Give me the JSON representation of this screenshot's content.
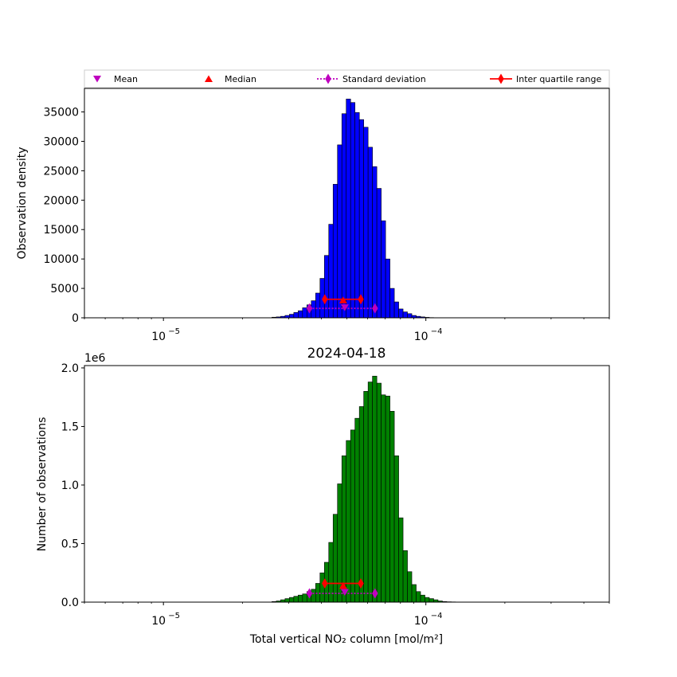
{
  "legend": {
    "placement": "top",
    "items": [
      {
        "label": "Mean",
        "color": "#bf00bf",
        "marker": "triangle-down",
        "line": "none"
      },
      {
        "label": "Median",
        "color": "#ff0000",
        "marker": "triangle-up",
        "line": "none"
      },
      {
        "label": "Standard deviation",
        "color": "#bf00bf",
        "marker": "diamond",
        "line": "dotted"
      },
      {
        "label": "Inter quartile range",
        "color": "#ff0000",
        "marker": "diamond",
        "line": "solid"
      }
    ]
  },
  "chart_data": [
    {
      "type": "bar",
      "title": "",
      "xlabel": "",
      "ylabel": "Observation density",
      "x_scale": "log",
      "xlim": [
        5e-06,
        0.0005
      ],
      "ylim": [
        0,
        39000
      ],
      "y_ticks": [
        0,
        5000,
        10000,
        15000,
        20000,
        25000,
        30000,
        35000
      ],
      "y_tick_labels": [
        "0",
        "5000",
        "10000",
        "15000",
        "20000",
        "25000",
        "30000",
        "35000"
      ],
      "x_ticks": [
        1e-05,
        0.0001
      ],
      "x_tick_labels": [
        "10",
        "10"
      ],
      "x_tick_exponents": [
        "−5",
        "−4"
      ],
      "bar_color": "#0000ff",
      "bin_start": 1.25e-05,
      "bin_ratio": 1.0391,
      "values": [
        0,
        0,
        0,
        0,
        0,
        0,
        0,
        0,
        0,
        0,
        0,
        0,
        0,
        0,
        0,
        0,
        0,
        0,
        0,
        100,
        150,
        250,
        400,
        600,
        900,
        1200,
        1700,
        2200,
        2900,
        4200,
        6700,
        10600,
        15900,
        22700,
        29400,
        34700,
        37200,
        36600,
        34900,
        33700,
        32400,
        29000,
        25700,
        22000,
        16500,
        10000,
        5000,
        2700,
        1500,
        1000,
        700,
        400,
        250,
        150,
        80,
        40,
        20,
        0
      ],
      "stats": {
        "mean": {
          "x": 4.91e-05,
          "y": 1750
        },
        "median": {
          "x": 4.84e-05,
          "y": 3000
        },
        "std": {
          "low": 3.6e-05,
          "high": 6.4e-05,
          "y": 1600
        },
        "iqr": {
          "q1": 4.12e-05,
          "q3": 5.65e-05,
          "y": 3150
        }
      }
    },
    {
      "type": "bar",
      "title": "2024-04-18",
      "xlabel": "Total vertical NO₂ column [mol/m²]",
      "ylabel": "Number of observations",
      "y_offset_label": "1e6",
      "x_scale": "log",
      "xlim": [
        5e-06,
        0.0005
      ],
      "ylim": [
        0,
        2.02
      ],
      "y_ticks": [
        0,
        0.5,
        1.0,
        1.5,
        2.0
      ],
      "y_tick_labels": [
        "0.0",
        "0.5",
        "1.0",
        "1.5",
        "2.0"
      ],
      "x_ticks": [
        1e-05,
        0.0001
      ],
      "x_tick_labels": [
        "10",
        "10"
      ],
      "x_tick_exponents": [
        "−5",
        "−4"
      ],
      "bar_color": "#008000",
      "bin_start": 1.25e-05,
      "bin_ratio": 1.0391,
      "values": [
        0,
        0,
        0,
        0,
        0,
        0,
        0,
        0,
        0,
        0,
        0,
        0,
        0,
        0,
        0,
        0,
        0,
        0,
        0,
        0.005,
        0.01,
        0.02,
        0.03,
        0.04,
        0.05,
        0.06,
        0.07,
        0.09,
        0.11,
        0.16,
        0.25,
        0.34,
        0.51,
        0.75,
        1.01,
        1.25,
        1.38,
        1.47,
        1.57,
        1.67,
        1.8,
        1.88,
        1.93,
        1.87,
        1.77,
        1.76,
        1.63,
        1.25,
        0.72,
        0.44,
        0.26,
        0.15,
        0.09,
        0.06,
        0.04,
        0.03,
        0.02,
        0.01,
        0.005,
        0.003,
        0.002,
        0
      ],
      "stats": {
        "mean": {
          "x": 4.91e-05,
          "y": 0.085
        },
        "median": {
          "x": 4.84e-05,
          "y": 0.14
        },
        "std": {
          "low": 3.6e-05,
          "high": 6.4e-05,
          "y": 0.075
        },
        "iqr": {
          "q1": 4.12e-05,
          "q3": 5.65e-05,
          "y": 0.16
        }
      }
    }
  ]
}
